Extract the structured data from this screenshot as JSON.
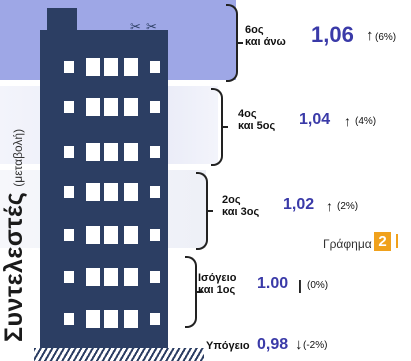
{
  "side_title": "Συντελεστές",
  "side_subtitle": "(μεταβολή)",
  "floors": [
    {
      "label_line1": "6ος",
      "label_line2": "και άνω",
      "value": "1,06",
      "arrow": "↑",
      "change": "(6%)"
    },
    {
      "label_line1": "4ος",
      "label_line2": "και 5ος",
      "value": "1,04",
      "arrow": "↑",
      "change": "(4%)"
    },
    {
      "label_line1": "2ος",
      "label_line2": "και 3ος",
      "value": "1,02",
      "arrow": "↑",
      "change": "(2%)"
    },
    {
      "label_line1": "Ισόγειο",
      "label_line2": "και 1ος",
      "value": "1.00",
      "arrow": "|",
      "change": "(0%)"
    },
    {
      "label_line1": "Υπόγειο",
      "label_line2": "",
      "value": "0,98",
      "arrow": "↓",
      "change": "(-2%)"
    }
  ],
  "graph_badge": {
    "label": "Γράφημα",
    "number": "2"
  },
  "colors": {
    "building": "#2c3e63",
    "top_band": "#9ea7e6",
    "value_text": "#3a3aa8",
    "badge": "#f0a11c"
  }
}
